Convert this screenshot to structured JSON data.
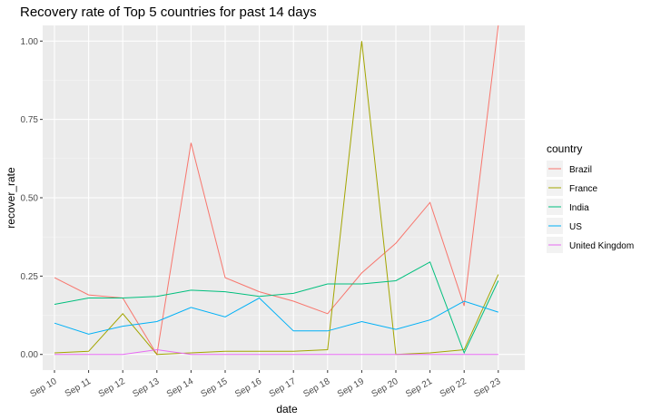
{
  "chart_data": {
    "type": "line",
    "title": "Recovery rate of Top 5 countries for past 14 days",
    "xlabel": "date",
    "ylabel": "recover_rate",
    "categories": [
      "Sep 10",
      "Sep 11",
      "Sep 12",
      "Sep 13",
      "Sep 14",
      "Sep 15",
      "Sep 16",
      "Sep 17",
      "Sep 18",
      "Sep 19",
      "Sep 20",
      "Sep 21",
      "Sep 22",
      "Sep 23"
    ],
    "yticks": [
      "0.00",
      "0.25",
      "0.50",
      "0.75",
      "1.00"
    ],
    "ylim": [
      -0.05,
      1.05
    ],
    "grid": true,
    "legend_title": "country",
    "legend_position": "right",
    "series": [
      {
        "name": "Brazil",
        "color": "#F8766D",
        "values": [
          0.245,
          0.19,
          0.18,
          0.0,
          0.675,
          0.245,
          0.2,
          0.17,
          0.13,
          0.26,
          0.355,
          0.485,
          0.155,
          1.05
        ]
      },
      {
        "name": "France",
        "color": "#A3A500",
        "values": [
          0.005,
          0.01,
          0.13,
          0.0,
          0.005,
          0.01,
          0.01,
          0.01,
          0.015,
          1.0,
          0.0,
          0.005,
          0.015,
          0.255
        ]
      },
      {
        "name": "India",
        "color": "#00BF7D",
        "values": [
          0.16,
          0.18,
          0.18,
          0.185,
          0.205,
          0.2,
          0.185,
          0.195,
          0.225,
          0.225,
          0.235,
          0.295,
          0.005,
          0.235
        ]
      },
      {
        "name": "US",
        "color": "#00B0F6",
        "values": [
          0.1,
          0.065,
          0.09,
          0.105,
          0.15,
          0.12,
          0.18,
          0.075,
          0.075,
          0.105,
          0.08,
          0.11,
          0.17,
          0.135
        ]
      },
      {
        "name": "United Kingdom",
        "color": "#E76BF3",
        "values": [
          0.0,
          0.0,
          0.0,
          0.015,
          0.0,
          0.0,
          0.0,
          0.0,
          0.0,
          0.0,
          0.0,
          0.0,
          0.0,
          0.0
        ]
      }
    ]
  }
}
